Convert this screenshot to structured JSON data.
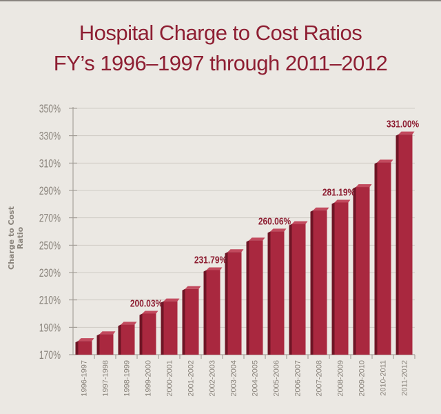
{
  "chart_data": {
    "type": "bar",
    "title": "Hospital Charge to Cost Ratios",
    "subtitle": "FY’s 1996–1997 through 2011–2012",
    "xlabel": "",
    "ylabel": "Charge to Cost Ratio",
    "ylim": [
      170,
      350
    ],
    "yticks": [
      "170%",
      "190%",
      "210%",
      "230%",
      "250%",
      "270%",
      "290%",
      "310%",
      "330%",
      "350%"
    ],
    "grid": true,
    "categories": [
      "1996-1997",
      "1997-1998",
      "1998-1999",
      "1999-2000",
      "2000-2001",
      "2001-2002",
      "2002-2003",
      "2003-2004",
      "2004-2005",
      "2005-2006",
      "2006-2007",
      "2007-2008",
      "2008-2009",
      "2009-2010",
      "2010-2011",
      "2011-2012"
    ],
    "values": [
      180,
      185,
      192,
      200.03,
      209,
      218,
      231.79,
      245,
      253.5,
      260.06,
      265.5,
      275.5,
      281.19,
      292.5,
      310.5,
      331.0
    ],
    "data_labels": {
      "3": "200.03%",
      "6": "231.79%",
      "9": "260.06%",
      "12": "281.19%",
      "15": "331.00%"
    },
    "colors": {
      "bar": "#a9283f",
      "bar_side": "#6e1525",
      "title": "#8e1f33",
      "axis_text": "#8a847c",
      "grid": "#cfcbc4"
    }
  }
}
